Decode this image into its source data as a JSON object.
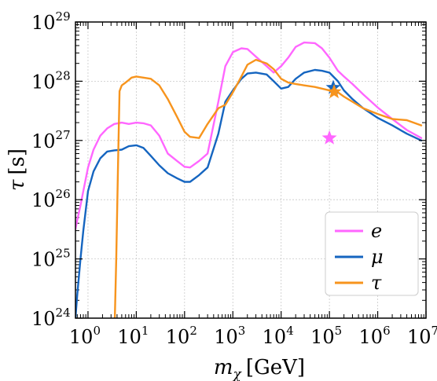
{
  "chart_data": {
    "type": "line",
    "title": "",
    "xlabel": {
      "symbol": "m",
      "subscript": "χ",
      "unit": "[GeV]"
    },
    "ylabel": {
      "symbol": "τ",
      "unit": "[s]"
    },
    "xscale": "log",
    "yscale": "log",
    "xlim": [
      0.55,
      10000000
    ],
    "ylim": [
      1e+24,
      1e+29
    ],
    "grid": true,
    "legend_position": "lower-right",
    "x_tick_labels": [
      {
        "base": "10",
        "exp": "0",
        "value": 1
      },
      {
        "base": "10",
        "exp": "1",
        "value": 10
      },
      {
        "base": "10",
        "exp": "2",
        "value": 100
      },
      {
        "base": "10",
        "exp": "3",
        "value": 1000
      },
      {
        "base": "10",
        "exp": "4",
        "value": 10000
      },
      {
        "base": "10",
        "exp": "5",
        "value": 100000
      },
      {
        "base": "10",
        "exp": "6",
        "value": 1000000
      },
      {
        "base": "10",
        "exp": "7",
        "value": 10000000
      }
    ],
    "y_tick_labels": [
      {
        "base": "10",
        "exp": "24",
        "value": 1e+24
      },
      {
        "base": "10",
        "exp": "25",
        "value": 1e+25
      },
      {
        "base": "10",
        "exp": "26",
        "value": 1e+26
      },
      {
        "base": "10",
        "exp": "27",
        "value": 1e+27
      },
      {
        "base": "10",
        "exp": "28",
        "value": 1e+28
      },
      {
        "base": "10",
        "exp": "29",
        "value": 1e+29
      }
    ],
    "series": [
      {
        "name": "e",
        "color": "#ff66ff",
        "x": [
          0.55,
          0.6,
          0.7,
          0.8,
          1,
          1.3,
          1.8,
          2.5,
          3.5,
          5,
          7,
          10,
          14,
          20,
          30,
          45,
          70,
          100,
          130,
          200,
          300,
          500,
          700,
          1000,
          1500,
          2000,
          3000,
          5000,
          7000,
          10000,
          14000,
          20000,
          30000,
          50000,
          70000,
          100000,
          150000,
          200000,
          300000,
          500000,
          1000000,
          2000000,
          4000000,
          8000000
        ],
        "y": [
          3.2e+25,
          4.5e+25,
          8e+25,
          1.4e+26,
          3.5e+26,
          7e+26,
          1.2e+27,
          1.6e+27,
          1.9e+27,
          2e+27,
          1.9e+27,
          2e+27,
          1.95e+27,
          1.8e+27,
          1.2e+27,
          6e+26,
          4.5e+26,
          3.6e+26,
          3.5e+26,
          4.5e+26,
          6e+26,
          4.5e+27,
          1.8e+28,
          3.1e+28,
          3.6e+28,
          3.5e+28,
          2.6e+28,
          1.8e+28,
          1.4e+28,
          1.8e+28,
          2.5e+28,
          3.8e+28,
          4.5e+28,
          4.4e+28,
          3.6e+28,
          2.5e+28,
          1.5e+28,
          1.2e+28,
          9e+27,
          6e+27,
          3.6e+27,
          2.3e+27,
          1.5e+27,
          1.1e+27
        ]
      },
      {
        "name": "μ",
        "color": "#1565c0",
        "x": [
          0.55,
          0.6,
          0.7,
          0.8,
          1,
          1.3,
          1.8,
          2.5,
          3.5,
          5,
          7,
          10,
          14,
          20,
          30,
          45,
          70,
          100,
          130,
          200,
          300,
          500,
          700,
          1000,
          1500,
          2000,
          3000,
          5000,
          7000,
          10000,
          14000,
          20000,
          30000,
          50000,
          70000,
          100000,
          150000,
          200000,
          300000,
          500000,
          1000000,
          2000000,
          4000000,
          8000000
        ],
        "y": [
          1e+24,
          2.5e+24,
          1e+25,
          3e+25,
          1.4e+26,
          3e+26,
          5e+26,
          6.5e+26,
          6.8e+26,
          7e+26,
          8e+26,
          8.3e+26,
          7.5e+26,
          5.5e+26,
          3.8e+26,
          2.8e+26,
          2.3e+26,
          2e+26,
          2e+26,
          2.6e+26,
          3.5e+26,
          1.3e+27,
          4.5e+27,
          7e+27,
          1.1e+28,
          1.35e+28,
          1.4e+28,
          1.3e+28,
          1e+28,
          7.5e+27,
          8e+27,
          1.1e+28,
          1.4e+28,
          1.55e+28,
          1.5e+28,
          1.4e+28,
          1e+28,
          7e+27,
          5e+27,
          3.5e+27,
          2.4e+27,
          1.8e+27,
          1.3e+27,
          1e+27
        ]
      },
      {
        "name": "τ",
        "color": "#f7941d",
        "x": [
          3.6,
          3.85,
          4.2,
          4.5,
          5,
          6,
          7,
          8,
          10,
          14,
          20,
          30,
          45,
          70,
          100,
          130,
          200,
          300,
          500,
          700,
          1000,
          1500,
          2000,
          3000,
          5000,
          7000,
          10000,
          14000,
          20000,
          30000,
          50000,
          70000,
          100000,
          150000,
          200000,
          300000,
          500000,
          1000000,
          2000000,
          4000000,
          8000000
        ],
        "y": [
          1e+24,
          1e+25,
          4e+26,
          6.8e+27,
          8.5e+27,
          9.5e+27,
          1.05e+28,
          1.15e+28,
          1.2e+28,
          1.15e+28,
          1.1e+28,
          8.5e+27,
          5e+27,
          2.5e+27,
          1.4e+27,
          1.15e+27,
          1.1e+27,
          1.9e+27,
          3.5e+27,
          4e+27,
          6.5e+27,
          1.2e+28,
          1.9e+28,
          2.3e+28,
          2e+28,
          1.6e+28,
          1.1e+28,
          9.5e+27,
          9e+27,
          8.5e+27,
          8e+27,
          7.5e+27,
          7e+27,
          6.5e+27,
          5.5e+27,
          4.5e+27,
          3.5e+27,
          2.8e+27,
          2.3e+27,
          2.2e+27,
          1.8e+27
        ]
      }
    ],
    "markers": [
      {
        "series": "e",
        "shape": "star",
        "x": 100000,
        "y": 1.1e+27,
        "color": "#ff66ff"
      },
      {
        "series": "μ",
        "shape": "star",
        "x": 120000,
        "y": 7.8e+27,
        "color": "#1565c0"
      },
      {
        "series": "τ",
        "shape": "star",
        "x": 125000,
        "y": 6.6e+27,
        "color": "#f7941d"
      }
    ]
  }
}
